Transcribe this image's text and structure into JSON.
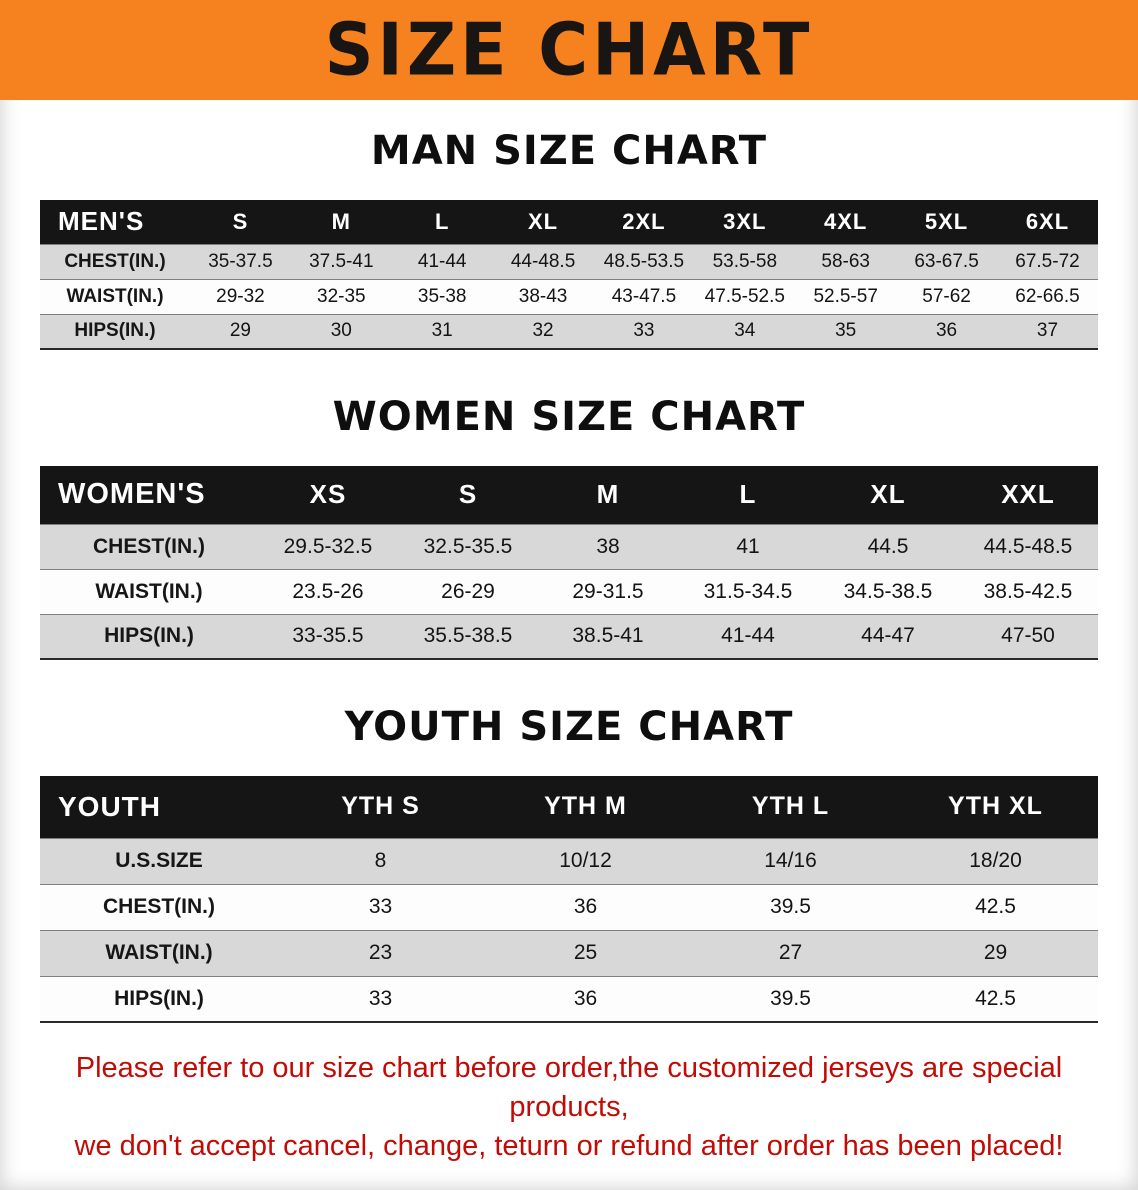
{
  "banner": {
    "title": "SIZE CHART"
  },
  "colors": {
    "banner_bg": "#f5821e",
    "header_bg": "#151515",
    "row_alt": "#d8d8d8",
    "disclaimer_color": "#c30b06"
  },
  "sections": [
    {
      "id": "men",
      "heading": "MAN SIZE CHART",
      "table": {
        "corner": "MEN'S",
        "columns": [
          "S",
          "M",
          "L",
          "XL",
          "2XL",
          "3XL",
          "4XL",
          "5XL",
          "6XL"
        ],
        "rows": [
          {
            "label": "CHEST(IN.)",
            "values": [
              "35-37.5",
              "37.5-41",
              "41-44",
              "44-48.5",
              "48.5-53.5",
              "53.5-58",
              "58-63",
              "63-67.5",
              "67.5-72"
            ]
          },
          {
            "label": "WAIST(IN.)",
            "values": [
              "29-32",
              "32-35",
              "35-38",
              "38-43",
              "43-47.5",
              "47.5-52.5",
              "52.5-57",
              "57-62",
              "62-66.5"
            ]
          },
          {
            "label": "HIPS(IN.)",
            "values": [
              "29",
              "30",
              "31",
              "32",
              "33",
              "34",
              "35",
              "36",
              "37"
            ]
          }
        ]
      }
    },
    {
      "id": "women",
      "heading": "WOMEN SIZE CHART",
      "table": {
        "corner": "WOMEN'S",
        "columns": [
          "XS",
          "S",
          "M",
          "L",
          "XL",
          "XXL"
        ],
        "rows": [
          {
            "label": "CHEST(IN.)",
            "values": [
              "29.5-32.5",
              "32.5-35.5",
              "38",
              "41",
              "44.5",
              "44.5-48.5"
            ]
          },
          {
            "label": "WAIST(IN.)",
            "values": [
              "23.5-26",
              "26-29",
              "29-31.5",
              "31.5-34.5",
              "34.5-38.5",
              "38.5-42.5"
            ]
          },
          {
            "label": "HIPS(IN.)",
            "values": [
              "33-35.5",
              "35.5-38.5",
              "38.5-41",
              "41-44",
              "44-47",
              "47-50"
            ]
          }
        ]
      }
    },
    {
      "id": "youth",
      "heading": "YOUTH SIZE CHART",
      "table": {
        "corner": "YOUTH",
        "columns": [
          "YTH S",
          "YTH M",
          "YTH L",
          "YTH XL"
        ],
        "rows": [
          {
            "label": "U.S.SIZE",
            "values": [
              "8",
              "10/12",
              "14/16",
              "18/20"
            ]
          },
          {
            "label": "CHEST(IN.)",
            "values": [
              "33",
              "36",
              "39.5",
              "42.5"
            ]
          },
          {
            "label": "WAIST(IN.)",
            "values": [
              "23",
              "25",
              "27",
              "29"
            ]
          },
          {
            "label": "HIPS(IN.)",
            "values": [
              "33",
              "36",
              "39.5",
              "42.5"
            ]
          }
        ]
      }
    }
  ],
  "disclaimer": {
    "line1": "Please refer to our size chart before order,the customized jerseys are special products,",
    "line2": "we don't accept cancel, change, teturn or refund after order has been placed!"
  }
}
